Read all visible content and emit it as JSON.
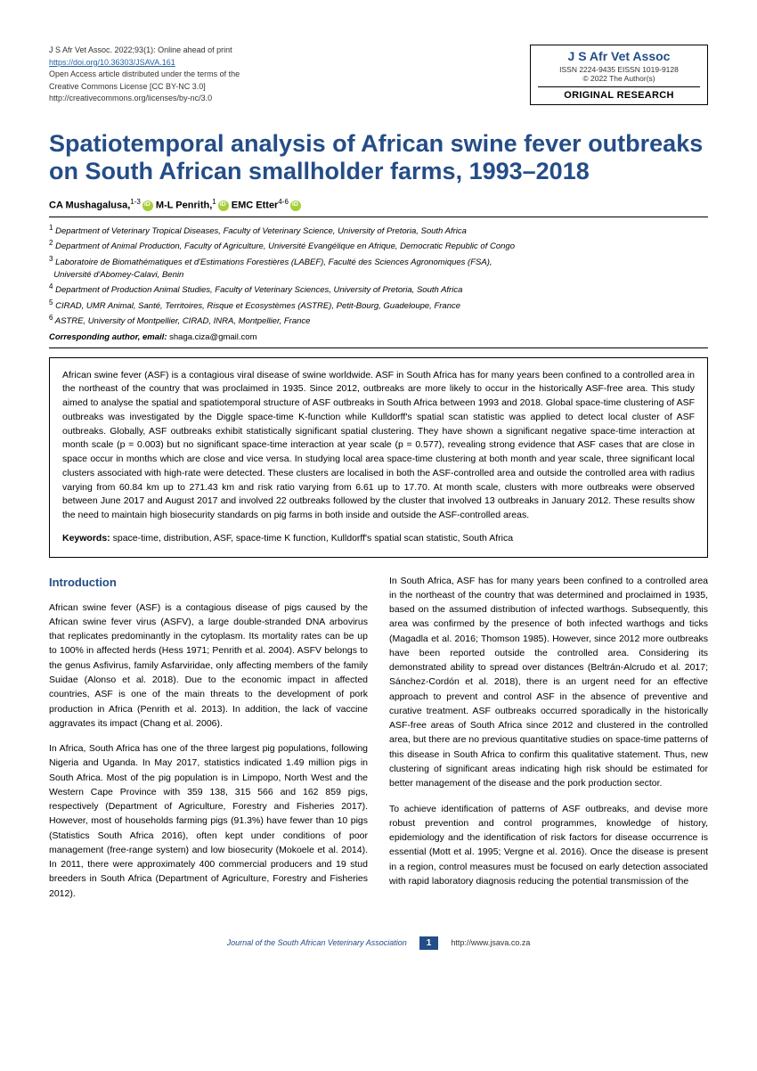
{
  "header": {
    "citation": "J S Afr Vet Assoc. 2022;93(1): Online ahead of print",
    "doi_url": "https://doi.org/10.36303/JSAVA.161",
    "open_access_1": "Open Access article distributed under the terms of the",
    "open_access_2": "Creative Commons License [CC BY-NC 3.0]",
    "cc_url": "http://creativecommons.org/licenses/by-nc/3.0",
    "journal": "J S Afr Vet Assoc",
    "issn": "ISSN 2224-9435   EISSN 1019-9128",
    "copyright": "© 2022 The Author(s)",
    "article_type": "ORIGINAL RESEARCH"
  },
  "title": "Spatiotemporal analysis of African swine fever outbreaks on South African smallholder farms, 1993–2018",
  "authors": {
    "a1_name": "CA Mushagalusa,",
    "a1_sup": "1-3",
    "a2_name": "M-L Penrith,",
    "a2_sup": "1",
    "a3_name": "EMC Etter",
    "a3_sup": "4-6"
  },
  "affiliations": {
    "l1": "Department of Veterinary Tropical Diseases, Faculty of Veterinary Science, University of Pretoria, South Africa",
    "l2": "Department of Animal Production, Faculty of Agriculture, Université Evangélique en Afrique, Democratic Republic of Congo",
    "l3": "Laboratoire de Biomathématiques et d'Estimations Forestières (LABEF), Faculté des Sciences Agronomiques (FSA),",
    "l3b": "Université d'Abomey-Calavi, Benin",
    "l4": "Department of Production Animal Studies, Faculty of Veterinary Sciences, University of Pretoria, South Africa",
    "l5": "CIRAD, UMR Animal, Santé, Territoires, Risque et Ecosystèmes (ASTRE), Petit-Bourg, Guadeloupe, France",
    "l6": "ASTRE, University of Montpellier, CIRAD, INRA, Montpellier, France",
    "corr_label": "Corresponding author, email:",
    "corr_email": "shaga.ciza@gmail.com"
  },
  "abstract": "African swine fever (ASF) is a contagious viral disease of swine worldwide. ASF in South Africa has for many years been confined to a controlled area in the northeast of the country that was proclaimed in 1935. Since 2012, outbreaks are more likely to occur in the historically ASF-free area. This study aimed to analyse the spatial and spatiotemporal structure of ASF outbreaks in South Africa between 1993 and 2018. Global space-time clustering of ASF outbreaks was investigated by the Diggle space-time K-function while Kulldorff's spatial scan statistic was applied to detect local cluster of ASF outbreaks. Globally, ASF outbreaks exhibit statistically significant spatial clustering. They have shown a significant negative space-time interaction at month scale (p = 0.003) but no significant space-time interaction at year scale (p = 0.577), revealing strong evidence that ASF cases that are close in space occur in months which are close and vice versa. In studying local area space-time clustering at both month and year scale, three significant local clusters associated with high-rate were detected. These clusters are localised in both the ASF-controlled area and outside the controlled area with radius varying from 60.84 km up to 271.43 km and risk ratio varying from 6.61 up to 17.70. At month scale, clusters with more outbreaks were observed between June 2017 and August 2017 and involved 22 outbreaks followed by the cluster that involved 13 outbreaks in January 2012. These results show the need to maintain high biosecurity standards on pig farms in both inside and outside the ASF-controlled areas.",
  "keywords_label": "Keywords:",
  "keywords": "space-time, distribution, ASF, space-time K function, Kulldorff's spatial scan statistic, South Africa",
  "intro_heading": "Introduction",
  "body": {
    "p1": "African swine fever (ASF) is a contagious disease of pigs caused by the African swine fever virus (ASFV), a large double-stranded DNA arbovirus that replicates predominantly in the cytoplasm. Its mortality rates can be up to 100% in affected herds (Hess 1971; Penrith et al. 2004). ASFV belongs to the genus Asfivirus, family Asfarviridae, only affecting members of the family Suidae (Alonso et al. 2018). Due to the economic impact in affected countries, ASF is one of the main threats to the development of pork production in Africa (Penrith et al. 2013). In addition, the lack of vaccine aggravates its impact (Chang et al. 2006).",
    "p2": "In Africa, South Africa has one of the three largest pig populations, following Nigeria and Uganda. In May 2017, statistics indicated 1.49 million pigs in South Africa. Most of the pig population is in Limpopo, North West and the Western Cape Province with 359 138, 315 566 and 162 859 pigs, respectively (Department of Agriculture, Forestry and Fisheries 2017). However, most of households farming pigs (91.3%) have fewer than 10 pigs (Statistics South Africa 2016), often kept under conditions of poor management (free-range system) and low biosecurity (Mokoele et al. 2014). In 2011, there were approximately 400 commercial producers and 19 stud breeders in South Africa (Department of Agriculture, Forestry and Fisheries 2012).",
    "p3": "In South Africa, ASF has for many years been confined to a controlled area in the northeast of the country that was determined and proclaimed in 1935, based on the assumed distribution of infected warthogs. Subsequently, this area was confirmed by the presence of both infected warthogs and ticks (Magadla et al. 2016; Thomson 1985). However, since 2012 more outbreaks have been reported outside the controlled area. Considering its demonstrated ability to spread over distances (Beltrán-Alcrudo et al. 2017; Sánchez-Cordón et al. 2018), there is an urgent need for an effective approach to prevent and control ASF in the absence of preventive and curative treatment. ASF outbreaks occurred sporadically in the historically ASF-free areas of South Africa since 2012 and clustered in the controlled area, but there are no previous quantitative studies on space-time patterns of this disease in South Africa to confirm this qualitative statement. Thus, new clustering of significant areas indicating high risk should be estimated for better management of the disease and the pork production sector.",
    "p4": "To achieve identification of patterns of ASF outbreaks, and devise more robust prevention and control programmes, knowledge of history, epidemiology and the identification of risk factors for disease occurrence is essential (Mott et al. 1995; Vergne et al. 2016). Once the disease is present in a region, control measures must be focused on early detection associated with rapid laboratory diagnosis reducing the potential transmission of the"
  },
  "footer": {
    "journal": "Journal of the South African Veterinary Association",
    "page": "1",
    "url": "http://www.jsava.co.za"
  }
}
